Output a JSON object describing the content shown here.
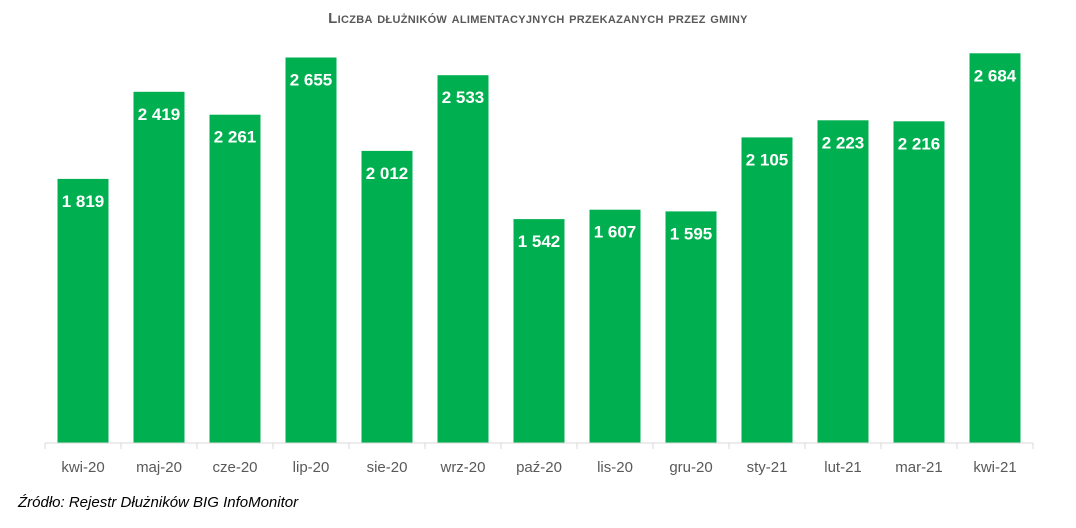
{
  "chart_data": {
    "type": "bar",
    "title": "Liczba dłużników alimentacyjnych przekazanych przez gminy",
    "categories": [
      "kwi-20",
      "maj-20",
      "cze-20",
      "lip-20",
      "sie-20",
      "wrz-20",
      "paź-20",
      "lis-20",
      "gru-20",
      "sty-21",
      "lut-21",
      "mar-21",
      "kwi-21"
    ],
    "values": [
      1819,
      2419,
      2261,
      2655,
      2012,
      2533,
      1542,
      1607,
      1595,
      2105,
      2223,
      2216,
      2684
    ],
    "data_labels": [
      "1 819",
      "2 419",
      "2 261",
      "2 655",
      "2 012",
      "2 533",
      "1 542",
      "1 607",
      "1 595",
      "2 105",
      "2 223",
      "2 216",
      "2 684"
    ],
    "xlabel": "",
    "ylabel": "",
    "ylim": [
      0,
      2700
    ],
    "grid": false,
    "legend": "none",
    "bar_color": "#00B050",
    "axis_color": "#D9D9D9"
  },
  "source": "Źródło: Rejestr Dłużników  BIG InfoMonitor"
}
